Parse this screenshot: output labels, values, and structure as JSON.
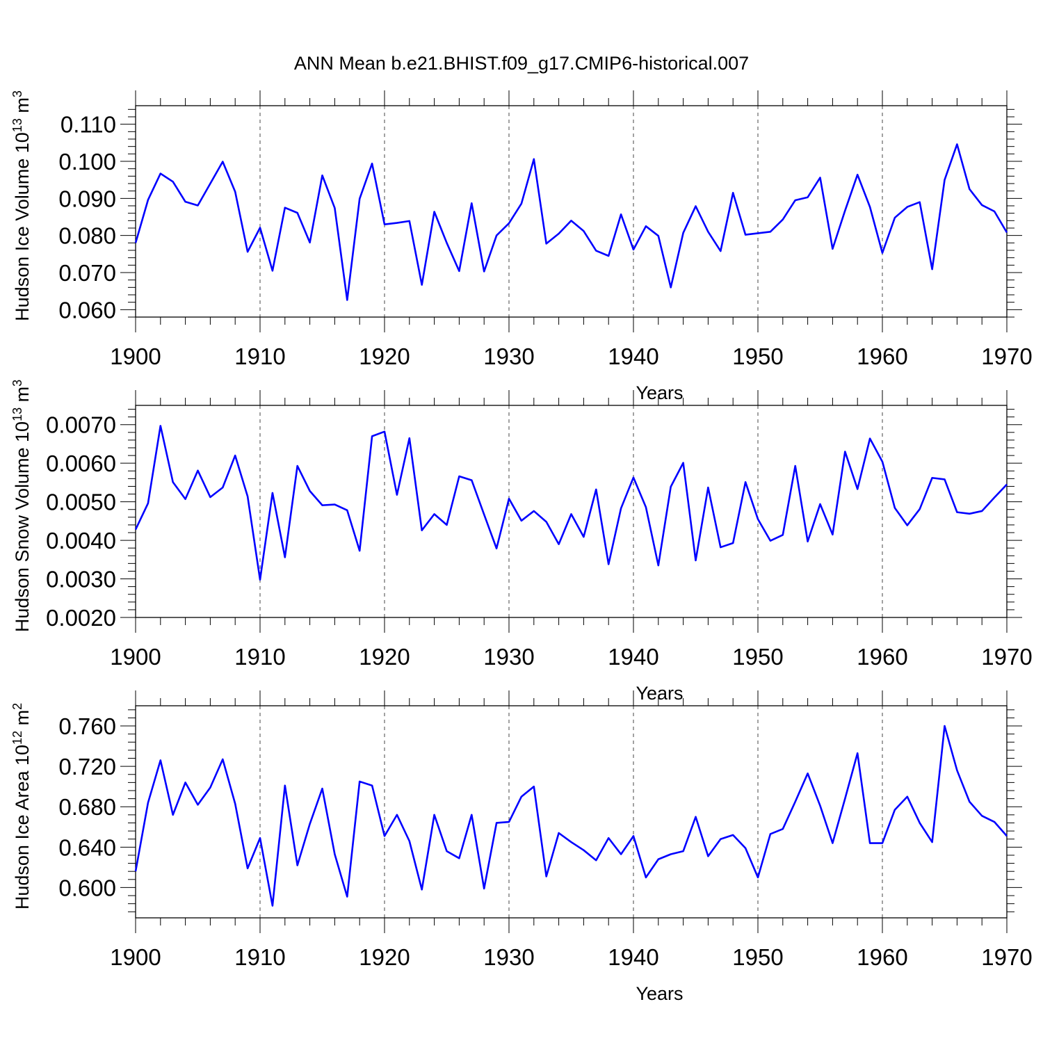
{
  "title": "ANN Mean b.e21.BHIST.f09_g17.CMIP6-historical.007",
  "colors": {
    "series": "#0000ff",
    "frame": "#000000",
    "grid": "#444444"
  },
  "chart_data": [
    {
      "type": "line",
      "ylabel_main": "Hudson Ice Volume 10",
      "ylabel_exp": "13",
      "ylabel_unit": " m",
      "ylabel_unit_exp": "3",
      "xlabel": "Years",
      "xlim": [
        1900,
        1970
      ],
      "ylim": [
        0.058,
        0.115
      ],
      "yticks": [
        0.06,
        0.07,
        0.08,
        0.09,
        0.1,
        0.11
      ],
      "ytick_labels": [
        "0.060",
        "0.070",
        "0.080",
        "0.090",
        "0.100",
        "0.110"
      ],
      "yminor": 0.002,
      "xticks": [
        1900,
        1910,
        1920,
        1930,
        1940,
        1950,
        1960,
        1970
      ],
      "xtick_labels": [
        "1900",
        "1910",
        "1920",
        "1930",
        "1940",
        "1950",
        "1960",
        "1970"
      ],
      "x_start": 1900,
      "values": [
        0.078,
        0.0896,
        0.0967,
        0.0945,
        0.0891,
        0.0881,
        0.094,
        0.0999,
        0.0918,
        0.0756,
        0.0821,
        0.0705,
        0.0875,
        0.0861,
        0.0781,
        0.0962,
        0.0874,
        0.0626,
        0.0899,
        0.0994,
        0.083,
        0.0834,
        0.0839,
        0.0667,
        0.0864,
        0.078,
        0.0704,
        0.0887,
        0.0703,
        0.08,
        0.0833,
        0.0886,
        0.1006,
        0.0778,
        0.0805,
        0.084,
        0.0812,
        0.0759,
        0.0745,
        0.0857,
        0.0762,
        0.0825,
        0.0799,
        0.066,
        0.0807,
        0.0879,
        0.081,
        0.0758,
        0.0915,
        0.0802,
        0.0806,
        0.081,
        0.0843,
        0.0895,
        0.0903,
        0.0956,
        0.0764,
        0.0867,
        0.0964,
        0.0877,
        0.0753,
        0.0848,
        0.0877,
        0.089,
        0.0709,
        0.095,
        0.1046,
        0.0925,
        0.0882,
        0.0865,
        0.0808
      ]
    },
    {
      "type": "line",
      "ylabel_main": "Hudson Snow Volume 10",
      "ylabel_exp": "13",
      "ylabel_unit": " m",
      "ylabel_unit_exp": "3",
      "xlabel": "Years",
      "xlim": [
        1900,
        1970
      ],
      "ylim": [
        0.002,
        0.0075
      ],
      "yticks": [
        0.002,
        0.003,
        0.004,
        0.005,
        0.006,
        0.007
      ],
      "ytick_labels": [
        "0.0020",
        "0.0030",
        "0.0040",
        "0.0050",
        "0.0060",
        "0.0070"
      ],
      "yminor": 0.0002,
      "xticks": [
        1900,
        1910,
        1920,
        1930,
        1940,
        1950,
        1960,
        1970
      ],
      "xtick_labels": [
        "1900",
        "1910",
        "1920",
        "1930",
        "1940",
        "1950",
        "1960",
        "1970"
      ],
      "x_start": 1900,
      "values": [
        0.00428,
        0.00496,
        0.00697,
        0.00551,
        0.00507,
        0.00581,
        0.00512,
        0.00537,
        0.0062,
        0.00514,
        0.00298,
        0.00523,
        0.00356,
        0.00593,
        0.00528,
        0.00491,
        0.00493,
        0.00478,
        0.00373,
        0.0067,
        0.00682,
        0.00518,
        0.00665,
        0.00426,
        0.00468,
        0.0044,
        0.00566,
        0.00556,
        0.00467,
        0.00379,
        0.00508,
        0.00451,
        0.00476,
        0.00448,
        0.0039,
        0.00468,
        0.00409,
        0.00532,
        0.00338,
        0.00483,
        0.00563,
        0.00486,
        0.00335,
        0.00539,
        0.00601,
        0.00348,
        0.00537,
        0.00382,
        0.00393,
        0.00551,
        0.00455,
        0.00399,
        0.00414,
        0.00593,
        0.00397,
        0.00494,
        0.00415,
        0.0063,
        0.00533,
        0.00664,
        0.00604,
        0.00484,
        0.00439,
        0.00481,
        0.00562,
        0.00558,
        0.00473,
        0.00469,
        0.00476,
        0.00511,
        0.00545
      ]
    },
    {
      "type": "line",
      "ylabel_main": "Hudson Ice Area 10",
      "ylabel_exp": "12",
      "ylabel_unit": " m",
      "ylabel_unit_exp": "2",
      "xlabel": "Years",
      "xlim": [
        1900,
        1970
      ],
      "ylim": [
        0.57,
        0.78
      ],
      "yticks": [
        0.6,
        0.64,
        0.68,
        0.72,
        0.76
      ],
      "ytick_labels": [
        "0.600",
        "0.640",
        "0.680",
        "0.720",
        "0.760"
      ],
      "yminor": 0.008,
      "xticks": [
        1900,
        1910,
        1920,
        1930,
        1940,
        1950,
        1960,
        1970
      ],
      "xtick_labels": [
        "1900",
        "1910",
        "1920",
        "1930",
        "1940",
        "1950",
        "1960",
        "1970"
      ],
      "x_start": 1900,
      "values": [
        0.616,
        0.684,
        0.726,
        0.672,
        0.704,
        0.682,
        0.699,
        0.727,
        0.683,
        0.619,
        0.649,
        0.582,
        0.701,
        0.622,
        0.663,
        0.698,
        0.633,
        0.591,
        0.705,
        0.701,
        0.651,
        0.672,
        0.646,
        0.598,
        0.672,
        0.636,
        0.629,
        0.672,
        0.599,
        0.664,
        0.665,
        0.69,
        0.7,
        0.611,
        0.654,
        0.645,
        0.637,
        0.627,
        0.649,
        0.633,
        0.651,
        0.61,
        0.628,
        0.633,
        0.636,
        0.67,
        0.631,
        0.648,
        0.652,
        0.639,
        0.61,
        0.653,
        0.658,
        0.685,
        0.713,
        0.681,
        0.644,
        0.688,
        0.733,
        0.644,
        0.644,
        0.677,
        0.69,
        0.664,
        0.645,
        0.76,
        0.716,
        0.685,
        0.671,
        0.665,
        0.651
      ]
    }
  ]
}
